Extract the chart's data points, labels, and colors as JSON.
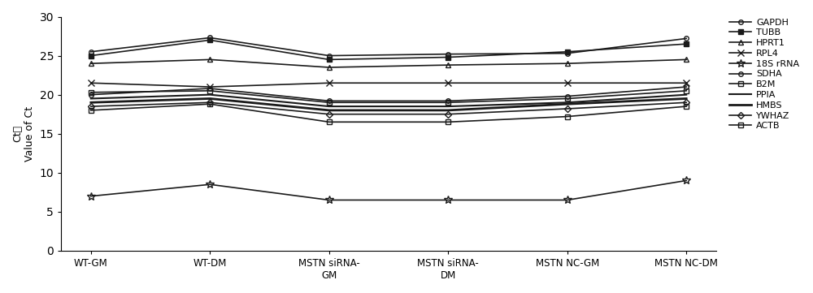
{
  "x_labels": [
    "WT-GM",
    "WT-DM",
    "MSTN siRNA-\nGM",
    "MSTN siRNA-\nDM",
    "MSTN NC-GM",
    "MSTN NC-DM"
  ],
  "series": {
    "GAPDH": [
      25.5,
      27.3,
      25.0,
      25.2,
      25.3,
      27.2
    ],
    "TUBB": [
      25.0,
      27.0,
      24.5,
      24.8,
      25.5,
      26.5
    ],
    "HPRT1": [
      24.0,
      24.5,
      23.5,
      23.8,
      24.0,
      24.5
    ],
    "RPL4": [
      21.5,
      21.0,
      21.5,
      21.5,
      21.5,
      21.5
    ],
    "18S rRNA": [
      7.0,
      8.5,
      6.5,
      6.5,
      6.5,
      9.0
    ],
    "SDHA": [
      20.0,
      20.8,
      19.2,
      19.2,
      19.8,
      21.0
    ],
    "B2M": [
      20.3,
      20.5,
      19.0,
      19.0,
      19.5,
      20.5
    ],
    "PPIA": [
      19.5,
      20.0,
      18.5,
      18.5,
      19.0,
      20.0
    ],
    "HMBS": [
      19.0,
      19.5,
      18.0,
      18.0,
      18.8,
      19.5
    ],
    "YWHAZ": [
      18.5,
      19.0,
      17.5,
      17.5,
      18.2,
      19.0
    ],
    "ACTB": [
      18.0,
      18.8,
      16.5,
      16.5,
      17.2,
      18.5
    ]
  },
  "markers": {
    "GAPDH": "o",
    "TUBB": "s",
    "HPRT1": "^",
    "RPL4": "x",
    "18S rRNA": "*",
    "SDHA": "o",
    "B2M": "s",
    "PPIA": "-",
    "HMBS": "-",
    "YWHAZ": "D",
    "ACTB": "s"
  },
  "markerfilled": {
    "GAPDH": false,
    "TUBB": true,
    "HPRT1": false,
    "RPL4": false,
    "18S rRNA": false,
    "SDHA": false,
    "B2M": false,
    "PPIA": false,
    "HMBS": false,
    "YWHAZ": false,
    "ACTB": false
  },
  "markersizes": {
    "GAPDH": 4,
    "TUBB": 4,
    "HPRT1": 5,
    "RPL4": 6,
    "18S rRNA": 7,
    "SDHA": 4,
    "B2M": 4,
    "PPIA": 4,
    "HMBS": 4,
    "YWHAZ": 4,
    "ACTB": 4
  },
  "linewidths": {
    "GAPDH": 1.2,
    "TUBB": 1.2,
    "HPRT1": 1.2,
    "RPL4": 1.2,
    "18S rRNA": 1.2,
    "SDHA": 1.2,
    "B2M": 1.2,
    "PPIA": 1.5,
    "HMBS": 2.0,
    "YWHAZ": 1.2,
    "ACTB": 1.2
  },
  "ylim": [
    0,
    30
  ],
  "yticks": [
    0,
    5,
    10,
    15,
    20,
    25,
    30
  ],
  "background": "#ffffff"
}
